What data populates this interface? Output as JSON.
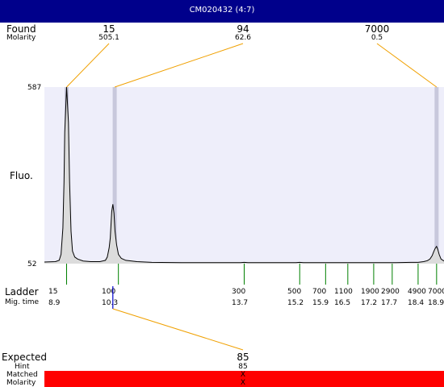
{
  "title": "CM020432 (4:7)",
  "labels": {
    "found": "Found",
    "molarity": "Molarity",
    "fluo": "Fluo.",
    "ladder": "Ladder",
    "mig_time": "Mig. time",
    "expected": "Expected",
    "hint": "Hint",
    "matched": "Matched",
    "molarity_bottom": "Molarity"
  },
  "colors": {
    "title_bar": "#00008b",
    "plot_bg": "#eeeefa",
    "connector": "#f0a000",
    "ladder_tick": "#008000",
    "highlight_band": "#c8c8dc",
    "matched_bar": "#ff0000",
    "marker": "#0000cc"
  },
  "found": [
    {
      "size": "15",
      "molarity": "505.1"
    },
    {
      "size": "94",
      "molarity": "62.6"
    },
    {
      "size": "7000",
      "molarity": "0.5"
    }
  ],
  "expected": {
    "size": "85",
    "hint": "85",
    "matched": "X",
    "molarity": "X"
  },
  "chart_data": {
    "type": "line",
    "ylabel": "Fluo.",
    "ylim": [
      52,
      587
    ],
    "xlim": [
      8.3,
      19.1
    ],
    "x_unit": "Mig. time",
    "y_ticks": [
      "587",
      "52"
    ],
    "ladder": [
      {
        "size": "15",
        "time": 8.9
      },
      {
        "size": "100",
        "time": 10.3
      },
      {
        "size": "300",
        "time": 13.7
      },
      {
        "size": "500",
        "time": 15.2
      },
      {
        "size": "700",
        "time": 15.9
      },
      {
        "size": "1100",
        "time": 16.5
      },
      {
        "size": "1900",
        "time": 17.2
      },
      {
        "size": "2900",
        "time": 17.7
      },
      {
        "size": "4900",
        "time": 18.4
      },
      {
        "size": "7000",
        "time": 18.9
      }
    ],
    "found_peaks_time": [
      8.9,
      10.2,
      18.9
    ],
    "expected_marker_time": 10.15,
    "series": [
      {
        "x": [
          8.3,
          8.6,
          8.7,
          8.75,
          8.8,
          8.83,
          8.85,
          8.9,
          8.95,
          8.98,
          9.02,
          9.06,
          9.12,
          9.2,
          9.35,
          9.55,
          9.8,
          9.95,
          10.0,
          10.05,
          10.08,
          10.1,
          10.12,
          10.15,
          10.18,
          10.21,
          10.25,
          10.3,
          10.38,
          10.5,
          10.8,
          11.2,
          12.0,
          13.0,
          13.6,
          13.7,
          13.8,
          14.5,
          15.1,
          15.2,
          15.3,
          15.8,
          15.9,
          16.0,
          16.4,
          16.5,
          16.6,
          17.1,
          17.2,
          17.3,
          17.6,
          17.7,
          17.8,
          18.2,
          18.4,
          18.55,
          18.65,
          18.72,
          18.78,
          18.82,
          18.86,
          18.9,
          18.93,
          18.97,
          19.02,
          19.1
        ],
        "y": [
          57,
          58,
          62,
          80,
          160,
          300,
          450,
          587,
          480,
          300,
          150,
          90,
          72,
          66,
          60,
          58,
          58,
          62,
          72,
          100,
          130,
          170,
          210,
          232,
          205,
          150,
          110,
          80,
          68,
          62,
          58,
          56,
          55,
          55,
          55,
          56,
          55,
          55,
          55,
          56,
          55,
          55,
          55,
          55,
          55,
          55,
          55,
          55,
          55,
          55,
          55,
          55,
          55,
          56,
          56,
          58,
          61,
          66,
          76,
          88,
          98,
          104,
          96,
          80,
          66,
          60
        ]
      }
    ]
  }
}
